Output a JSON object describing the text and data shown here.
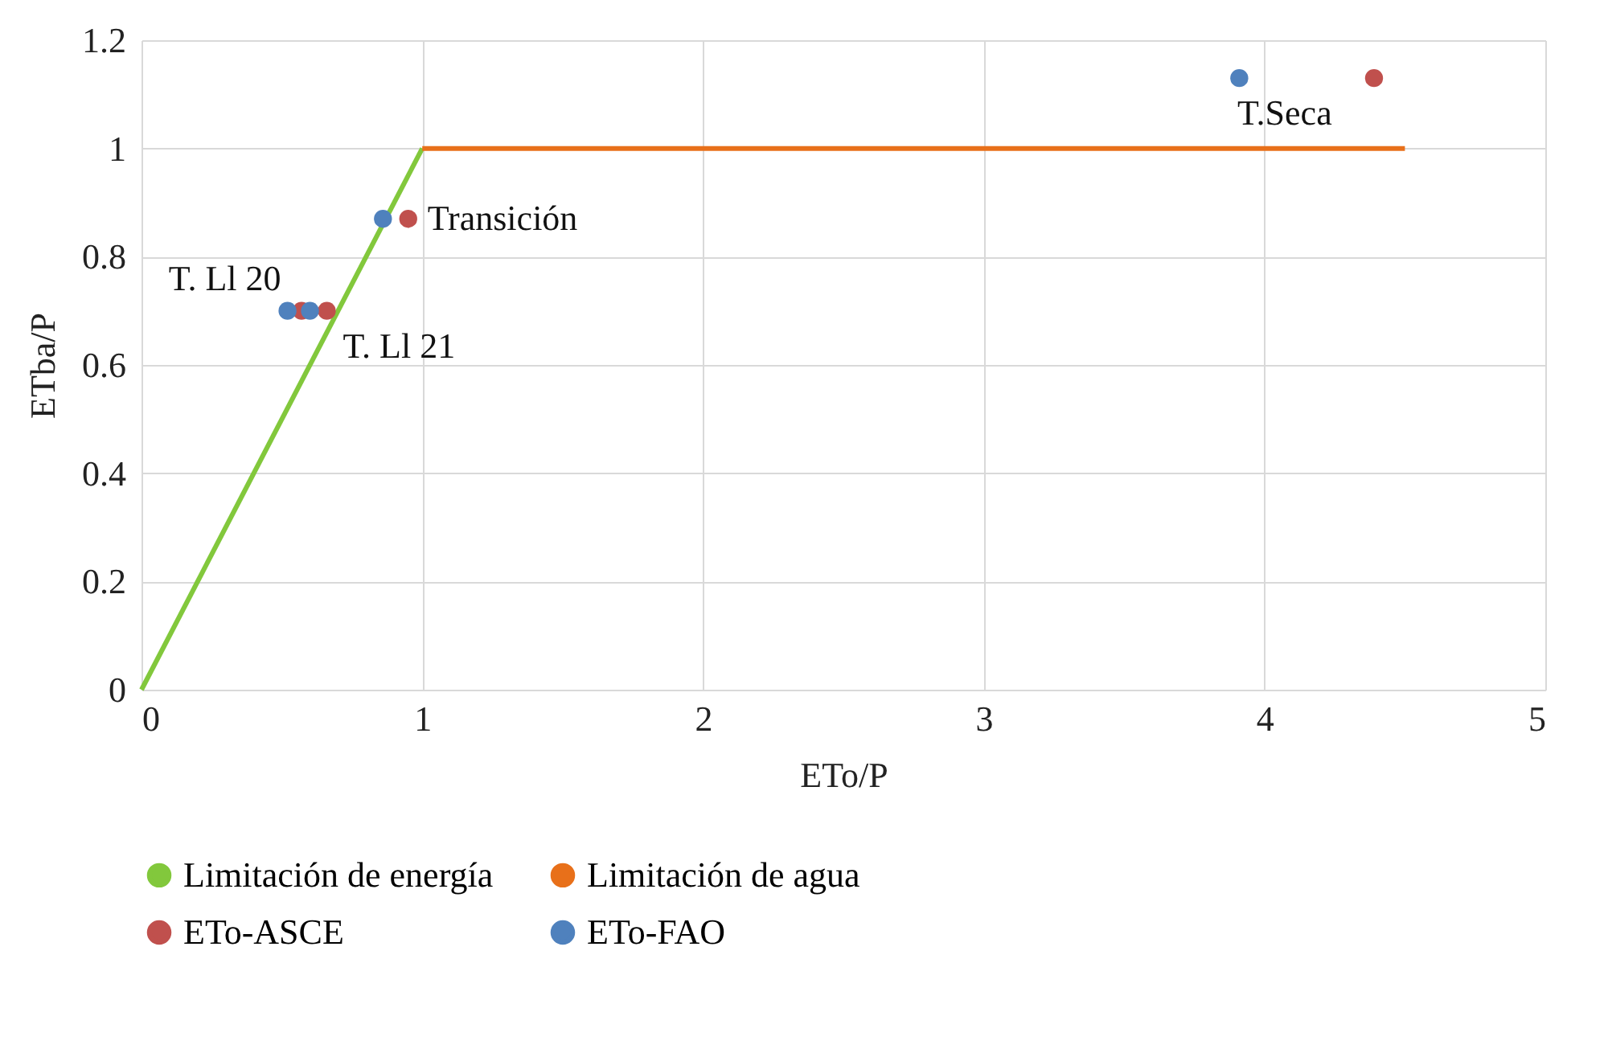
{
  "chart_data": {
    "type": "scatter",
    "xlabel": "ETo/P",
    "ylabel": "ETba/P",
    "xlim": [
      0,
      5
    ],
    "xticks": [
      0,
      1,
      2,
      3,
      4,
      5
    ],
    "ylim": [
      0,
      1.2
    ],
    "yticks": [
      0,
      0.2,
      0.4,
      0.6,
      0.8,
      1,
      1.2
    ],
    "grid": true,
    "legend": "bottom",
    "series": [
      {
        "name": "Limitación de energía",
        "type": "line",
        "color": "#82c83c",
        "x": [
          0,
          1
        ],
        "values": [
          0,
          1
        ]
      },
      {
        "name": "Limitación de agua",
        "type": "line",
        "color": "#e8701a",
        "x": [
          1,
          4.5
        ],
        "values": [
          1,
          1
        ]
      },
      {
        "name": "ETo-ASCE",
        "color": "#c0504d",
        "x": [
          0.57,
          0.66,
          0.95,
          4.39
        ],
        "values": [
          0.7,
          0.7,
          0.87,
          1.13
        ]
      },
      {
        "name": "ETo-FAO",
        "color": "#4f81bd",
        "x": [
          0.52,
          0.6,
          0.86,
          3.91
        ],
        "values": [
          0.7,
          0.7,
          0.87,
          1.13
        ]
      }
    ],
    "annotations": [
      {
        "text": "T. Ll 20",
        "x": 0.52,
        "y": 0.7
      },
      {
        "text": "T. Ll 21",
        "x": 0.66,
        "y": 0.7
      },
      {
        "text": "Transición",
        "x": 0.95,
        "y": 0.87
      },
      {
        "text": "T.Seca",
        "x": 4.39,
        "y": 1.13
      }
    ]
  }
}
